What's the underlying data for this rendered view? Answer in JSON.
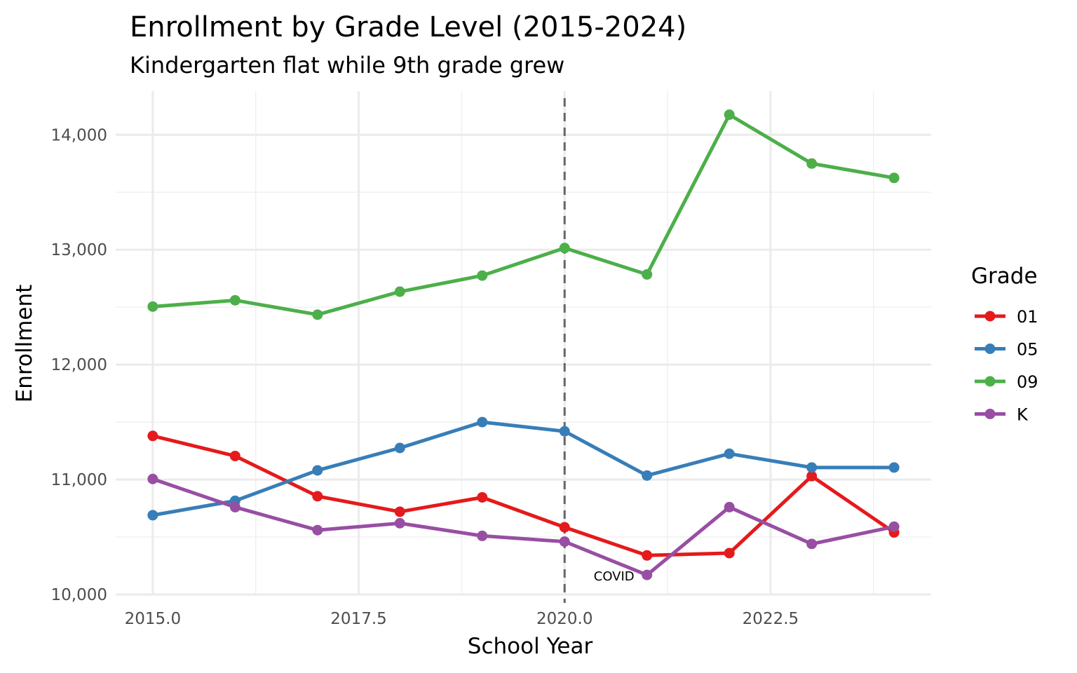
{
  "chart_data": {
    "type": "line",
    "title": "Enrollment by Grade Level (2015-2024)",
    "subtitle": "Kindergarten flat while 9th grade grew",
    "xlabel": "School Year",
    "ylabel": "Enrollment",
    "xlim": [
      2014.55,
      2024.45
    ],
    "ylim": [
      10000,
      14380
    ],
    "x_ticks": [
      2015.0,
      2017.5,
      2020.0,
      2022.5
    ],
    "x_tick_labels": [
      "2015.0",
      "2017.5",
      "2020.0",
      "2022.5"
    ],
    "y_ticks": [
      10000,
      11000,
      12000,
      13000,
      14000
    ],
    "y_tick_labels": [
      "10,000",
      "11,000",
      "12,000",
      "13,000",
      "14,000"
    ],
    "grid": true,
    "legend": {
      "title": "Grade",
      "placement": "right"
    },
    "x": [
      2015,
      2016,
      2017,
      2018,
      2019,
      2020,
      2021,
      2022,
      2023,
      2024
    ],
    "series": [
      {
        "name": "01",
        "color": "#e41a1c",
        "values": [
          11380,
          11205,
          10855,
          10720,
          10845,
          10585,
          10340,
          10360,
          11030,
          10540
        ]
      },
      {
        "name": "05",
        "color": "#377eb8",
        "values": [
          10690,
          10815,
          11080,
          11275,
          11500,
          11420,
          11035,
          11225,
          11105,
          11105
        ]
      },
      {
        "name": "09",
        "color": "#4daf4a",
        "values": [
          12505,
          12560,
          12435,
          12635,
          12775,
          13015,
          12785,
          14175,
          13750,
          13625
        ]
      },
      {
        "name": "K",
        "color": "#984ea3",
        "values": [
          11005,
          10760,
          10560,
          10620,
          10510,
          10460,
          10170,
          10760,
          10440,
          10590
        ]
      }
    ],
    "annotations": [
      {
        "type": "vline",
        "x": 2020,
        "style": "dashed",
        "color": "#666666"
      },
      {
        "type": "text",
        "text": "COVID",
        "x": 2020.6,
        "y": 10160
      }
    ]
  }
}
